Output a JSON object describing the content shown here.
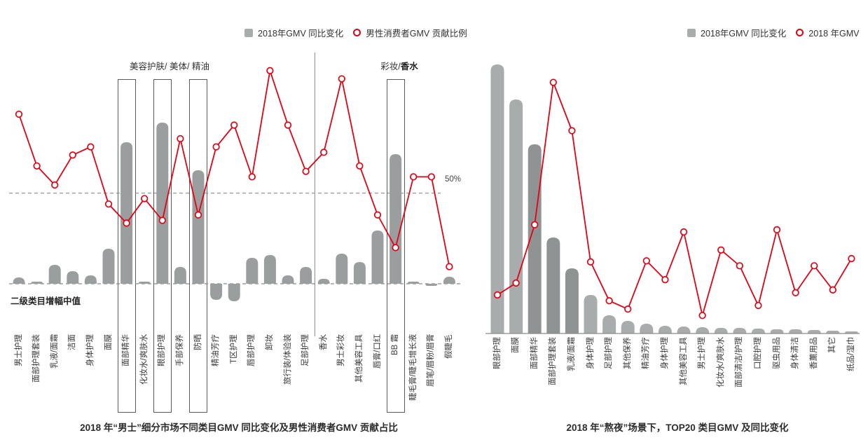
{
  "chart_data": [
    {
      "type": "bar+line",
      "title": "2018 年“男士”细分市场不同类目GMV 同比变化及男性消费者GMV 贡献占比",
      "legend": [
        {
          "swatch": "gray-square",
          "label": "2018年GMV 同比变化",
          "color": "#a9acac"
        },
        {
          "swatch": "red-ring",
          "label": "男性消费者GMV 贡献比例",
          "color": "#e60012"
        }
      ],
      "categories": [
        "男士护理",
        "面部护理套装",
        "乳液/面霜",
        "洁面",
        "身体护理",
        "面膜",
        "面部精华",
        "化妆水/爽肤水",
        "眼部护理",
        "手部保养",
        "防晒",
        "精油芳疗",
        "T区护理",
        "唇部护理",
        "卸妆",
        "旅行装/体验装",
        "足部护理",
        "香水",
        "男士彩妆",
        "其他美容工具",
        "唇膏/口红",
        "BB 霜",
        "睫毛膏/睫毛增长液",
        "眉笔/眉粉/眉膏",
        "假睫毛"
      ],
      "series": [
        {
          "name": "2018年GMV 同比变化",
          "type": "bar",
          "unit": "relative growth vs. median line (axis unlabeled, estimated)",
          "values": [
            9,
            3,
            27,
            18,
            12,
            50,
            202,
            3,
            230,
            24,
            162,
            -23,
            -25,
            37,
            41,
            12,
            24,
            7,
            43,
            31,
            76,
            185,
            3,
            -3,
            10
          ]
        },
        {
          "name": "男性消费者GMV 贡献比例",
          "type": "line",
          "unit": "%",
          "values": [
            79,
            60,
            53,
            64,
            67,
            46,
            39,
            48,
            40,
            70,
            42,
            67,
            75,
            56,
            95,
            75,
            58,
            65,
            92,
            60,
            42,
            30,
            56,
            56,
            23
          ]
        }
      ],
      "reference_lines": [
        {
          "label": "50%",
          "series": "男性消费者GMV 贡献比例",
          "value": 50
        },
        {
          "label": "二级类目增幅中值",
          "series": "2018年GMV 同比变化",
          "value": 0
        }
      ],
      "annotations": {
        "section_left": "美容护肤/ 美体/ 精油",
        "section_right_prefix": "彩妆/",
        "section_right_bold": "香水"
      },
      "highlighted_categories": [
        "面部精华",
        "眼部护理",
        "防晒",
        "BB 霜"
      ],
      "divider_after_category": "足部护理",
      "colors": {
        "bar": "#9b9e9e",
        "line": "#e60012",
        "dashed": "#8c8c8c",
        "box": "#5a5a5a"
      },
      "legend_position": "top",
      "grid": "two horizontal dashed reference lines only"
    },
    {
      "type": "bar+line",
      "title": "2018 年“熬夜”场景下，TOP20 类目GMV 及同比变化",
      "legend": [
        {
          "swatch": "gray-square",
          "label": "2018年GMV 同比变化",
          "color": "#a9acac"
        },
        {
          "swatch": "red-ring",
          "label": "2018 年GMV",
          "color": "#e60012"
        }
      ],
      "categories": [
        "眼部护理",
        "面膜",
        "面部精华",
        "面部护理套装",
        "乳液/面霜",
        "身体护理",
        "足部护理",
        "其他保养",
        "精油芳疗",
        "身体护理",
        "其他美容工具",
        "男士护理",
        "化妆水/爽肤水",
        "面部清洁/护理",
        "口腔护理",
        "驱虫用品",
        "身体清洁",
        "香薰用品",
        "其它",
        "纸品/湿巾"
      ],
      "series": [
        {
          "name": "2018年GMV 同比变化",
          "type": "bar",
          "unit": "relative (axis unlabeled, estimated, sorted descending)",
          "values": [
            384,
            334,
            270,
            137,
            93,
            55,
            26,
            18,
            14,
            11,
            10,
            9,
            8,
            8,
            7,
            6,
            6,
            5,
            4,
            3
          ]
        },
        {
          "name": "2018年GMV",
          "type": "line",
          "unit": "relative 0-100 of plot height (axis unlabeled, estimated)",
          "values": [
            13.9,
            18.2,
            39.2,
            90.5,
            73.1,
            25.8,
            11.8,
            8.8,
            26.2,
            19.4,
            36.6,
            6.5,
            30.1,
            24.4,
            10.1,
            37.4,
            14.7,
            24.4,
            15.7,
            27
          ]
        }
      ],
      "dark_bar_categories": [
        "面部精华",
        "面部护理套装",
        "乳液/面霜"
      ],
      "colors": {
        "bar": "#a9acac",
        "bar_dark": "#8f9393",
        "line": "#e60012",
        "axis": "#8a8a8a"
      },
      "legend_position": "top",
      "grid": "off"
    }
  ]
}
